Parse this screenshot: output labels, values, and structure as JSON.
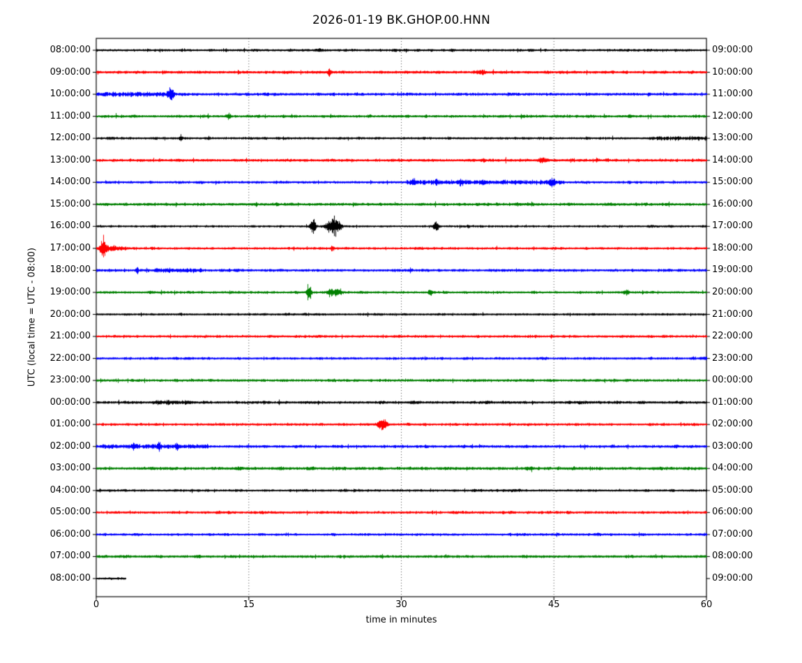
{
  "chart_data": {
    "type": "line",
    "variant": "helicorder_dayplot",
    "title": "2026-01-19 BK.GHOP.00.HNN",
    "xlabel": "time in minutes",
    "ylabel": "UTC (local time = UTC - 08:00)",
    "axis": {
      "xlim": [
        0,
        60
      ],
      "xticks": [
        0,
        15,
        30,
        45,
        60
      ],
      "xtick_labels": [
        "0",
        "15",
        "30",
        "45",
        "60"
      ],
      "grid_minutes": [
        15,
        30,
        45
      ],
      "grid_style": "dotted"
    },
    "colors": {
      "black": "#000000",
      "red": "#ff0000",
      "blue": "#0000ff",
      "green": "#008000"
    },
    "rows": [
      {
        "left": "08:00:00",
        "right": "09:00:00",
        "color": "black",
        "noise": 2.2,
        "events": []
      },
      {
        "left": "09:00:00",
        "right": "10:00:00",
        "color": "red",
        "noise": 2.5,
        "events": [
          {
            "m": 22.9,
            "w": 0.15,
            "a": 3.5
          },
          {
            "m": 37.8,
            "w": 0.3,
            "a": 2.5
          }
        ]
      },
      {
        "left": "10:00:00",
        "right": "11:00:00",
        "color": "blue",
        "noise": 2.6,
        "regions": [
          {
            "from": 0.5,
            "to": 7.5,
            "amp": 3.4
          }
        ],
        "events": [
          {
            "m": 7.3,
            "w": 0.2,
            "a": 10
          }
        ]
      },
      {
        "left": "11:00:00",
        "right": "12:00:00",
        "color": "green",
        "noise": 2.4,
        "events": [
          {
            "m": 13.0,
            "w": 0.15,
            "a": 4.5
          }
        ]
      },
      {
        "left": "12:00:00",
        "right": "13:00:00",
        "color": "black",
        "noise": 2.2,
        "regions": [
          {
            "from": 55,
            "to": 60,
            "amp": 3.0
          }
        ],
        "events": [
          {
            "m": 8.3,
            "w": 0.12,
            "a": 4
          }
        ]
      },
      {
        "left": "13:00:00",
        "right": "14:00:00",
        "color": "red",
        "noise": 2.5,
        "events": [
          {
            "m": 38.0,
            "w": 0.15,
            "a": 2.5
          },
          {
            "m": 43.8,
            "w": 0.25,
            "a": 3.5
          }
        ]
      },
      {
        "left": "14:00:00",
        "right": "15:00:00",
        "color": "blue",
        "noise": 2.3,
        "regions": [
          {
            "from": 30.5,
            "to": 46,
            "amp": 3.2
          }
        ],
        "events": [
          {
            "m": 31.2,
            "w": 0.15,
            "a": 4
          },
          {
            "m": 33.4,
            "w": 0.15,
            "a": 4
          },
          {
            "m": 35.8,
            "w": 0.2,
            "a": 3.5
          },
          {
            "m": 38.0,
            "w": 0.15,
            "a": 3.5
          },
          {
            "m": 44.8,
            "w": 0.2,
            "a": 4.5
          }
        ]
      },
      {
        "left": "15:00:00",
        "right": "16:00:00",
        "color": "green",
        "noise": 2.6,
        "events": []
      },
      {
        "left": "16:00:00",
        "right": "17:00:00",
        "color": "black",
        "noise": 2.0,
        "events": [
          {
            "m": 21.3,
            "w": 0.18,
            "a": 12
          },
          {
            "m": 23.3,
            "w": 0.45,
            "a": 16
          },
          {
            "m": 33.4,
            "w": 0.2,
            "a": 6.5
          },
          {
            "m": 36.5,
            "w": 0.12,
            "a": 3
          }
        ]
      },
      {
        "left": "17:00:00",
        "right": "18:00:00",
        "color": "red",
        "noise": 2.2,
        "events": [
          {
            "m": 0.65,
            "w": 0.15,
            "a": 22
          },
          {
            "m": 1.4,
            "w": 0.8,
            "a": 4
          },
          {
            "m": 23.2,
            "w": 0.12,
            "a": 4
          }
        ]
      },
      {
        "left": "18:00:00",
        "right": "19:00:00",
        "color": "blue",
        "noise": 2.4,
        "regions": [
          {
            "from": 5.5,
            "to": 10.5,
            "amp": 3.3
          }
        ],
        "events": [
          {
            "m": 4.0,
            "w": 0.1,
            "a": 6
          }
        ]
      },
      {
        "left": "19:00:00",
        "right": "20:00:00",
        "color": "green",
        "noise": 2.2,
        "events": [
          {
            "m": 20.9,
            "w": 0.15,
            "a": 15
          },
          {
            "m": 23.4,
            "w": 0.45,
            "a": 6
          },
          {
            "m": 32.8,
            "w": 0.12,
            "a": 6
          },
          {
            "m": 52.1,
            "w": 0.2,
            "a": 3.5
          }
        ]
      },
      {
        "left": "20:00:00",
        "right": "21:00:00",
        "color": "black",
        "noise": 2.0,
        "events": []
      },
      {
        "left": "21:00:00",
        "right": "22:00:00",
        "color": "red",
        "noise": 2.3,
        "events": []
      },
      {
        "left": "22:00:00",
        "right": "23:00:00",
        "color": "blue",
        "noise": 2.2,
        "events": []
      },
      {
        "left": "23:00:00",
        "right": "00:00:00",
        "color": "green",
        "noise": 2.4,
        "events": []
      },
      {
        "left": "00:00:00",
        "right": "01:00:00",
        "color": "black",
        "noise": 2.5,
        "regions": [
          {
            "from": 5.5,
            "to": 9,
            "amp": 3.2
          }
        ],
        "events": []
      },
      {
        "left": "01:00:00",
        "right": "02:00:00",
        "color": "red",
        "noise": 2.3,
        "events": [
          {
            "m": 28.1,
            "w": 0.3,
            "a": 9
          }
        ]
      },
      {
        "left": "02:00:00",
        "right": "03:00:00",
        "color": "blue",
        "noise": 2.5,
        "regions": [
          {
            "from": 0.5,
            "to": 11,
            "amp": 3.2
          }
        ],
        "events": [
          {
            "m": 3.6,
            "w": 0.1,
            "a": 4
          },
          {
            "m": 6.2,
            "w": 0.12,
            "a": 7
          },
          {
            "m": 7.9,
            "w": 0.1,
            "a": 4
          }
        ]
      },
      {
        "left": "03:00:00",
        "right": "04:00:00",
        "color": "green",
        "noise": 2.7,
        "events": []
      },
      {
        "left": "04:00:00",
        "right": "05:00:00",
        "color": "black",
        "noise": 2.2,
        "events": []
      },
      {
        "left": "05:00:00",
        "right": "06:00:00",
        "color": "red",
        "noise": 2.4,
        "events": []
      },
      {
        "left": "06:00:00",
        "right": "07:00:00",
        "color": "blue",
        "noise": 2.2,
        "events": []
      },
      {
        "left": "07:00:00",
        "right": "08:00:00",
        "color": "green",
        "noise": 2.4,
        "events": []
      },
      {
        "left": "08:00:00",
        "right": "09:00:00",
        "color": "black",
        "noise": 2.0,
        "end": 2.9,
        "events": []
      }
    ]
  }
}
